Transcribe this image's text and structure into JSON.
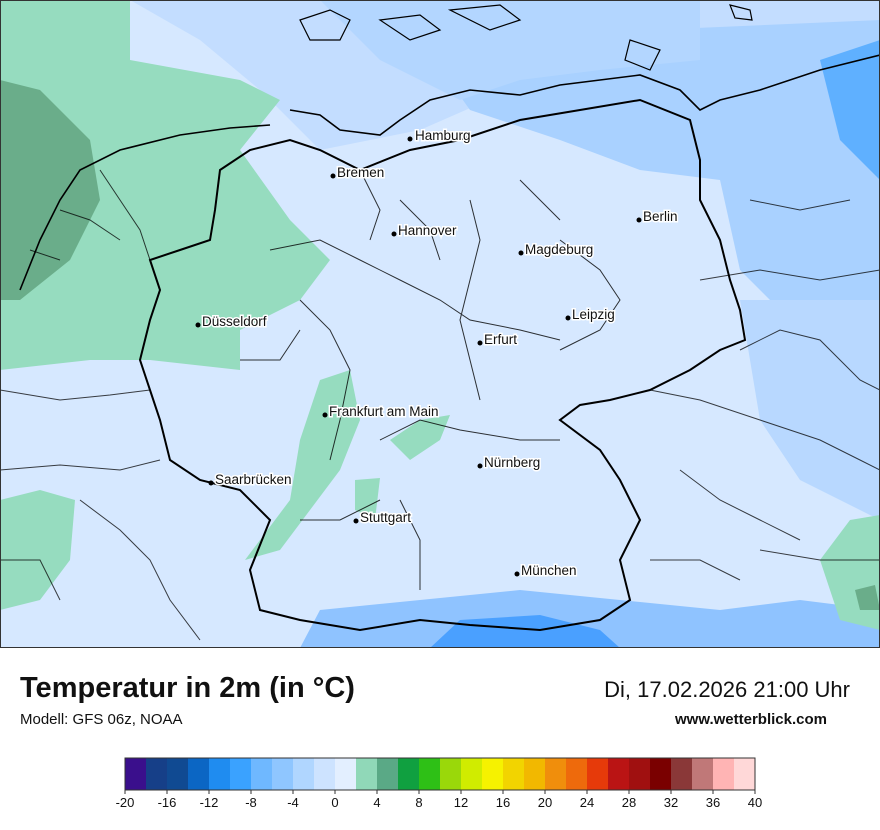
{
  "title": "Temperatur in 2m (in °C)",
  "model": "Modell: GFS 06z, NOAA",
  "datetime": "Di, 17.02.2026 21:00 Uhr",
  "site": "www.wetterblick.com",
  "cities": [
    {
      "name": "Hamburg"
    },
    {
      "name": "Bremen"
    },
    {
      "name": "Hannover"
    },
    {
      "name": "Berlin"
    },
    {
      "name": "Magdeburg"
    },
    {
      "name": "Leipzig"
    },
    {
      "name": "Düsseldorf"
    },
    {
      "name": "Erfurt"
    },
    {
      "name": "Frankfurt am Main"
    },
    {
      "name": "Nürnberg"
    },
    {
      "name": "Saarbrücken"
    },
    {
      "name": "Stuttgart"
    },
    {
      "name": "München"
    }
  ],
  "legend": {
    "ticks": [
      "-20",
      "-16",
      "-12",
      "-8",
      "-4",
      "0",
      "4",
      "8",
      "12",
      "16",
      "20",
      "24",
      "28",
      "32",
      "36",
      "40"
    ],
    "colors": [
      "#3a0f8c",
      "#163f88",
      "#104a92",
      "#0b66c4",
      "#1f8cf0",
      "#3aa2ff",
      "#6fb8ff",
      "#8fc6ff",
      "#b0d6ff",
      "#cde3ff",
      "#e3efff",
      "#90d8b8",
      "#5aa986",
      "#10a040",
      "#2ec016",
      "#9ad80a",
      "#d0ec00",
      "#f6f200",
      "#f2d400",
      "#f2b800",
      "#f08e0c",
      "#ee6a0c",
      "#e63a0a",
      "#ba1414",
      "#a01010",
      "#7a0000",
      "#8a3838",
      "#c07878",
      "#ffb4b4",
      "#ffd8d8"
    ]
  }
}
